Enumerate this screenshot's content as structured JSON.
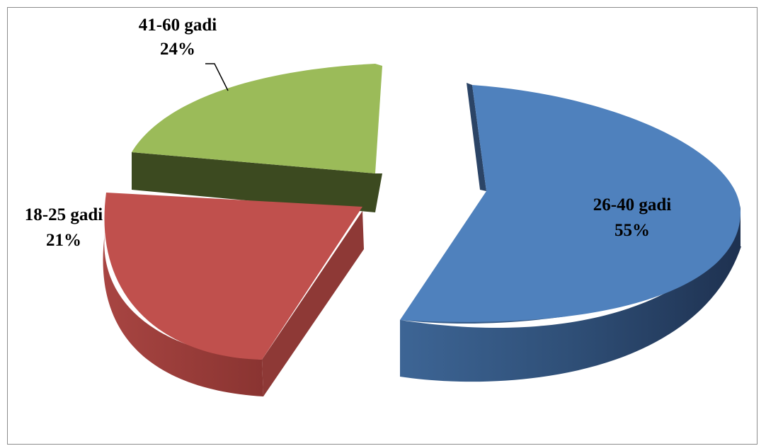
{
  "chart_data": {
    "type": "pie",
    "style": "3d-exploded",
    "categories": [
      "26-40 gadi",
      "18-25 gadi",
      "41-60 gadi"
    ],
    "values": [
      55,
      21,
      24
    ],
    "unit": "%",
    "colors": [
      "#4F81BD",
      "#C0504D",
      "#9BBB59"
    ],
    "title": "",
    "legend": "none",
    "data_labels": [
      {
        "name": "26-40 gadi",
        "pct": "55%"
      },
      {
        "name": "18-25 gadi",
        "pct": "21%"
      },
      {
        "name": "41-60 gadi",
        "pct": "24%"
      }
    ]
  }
}
